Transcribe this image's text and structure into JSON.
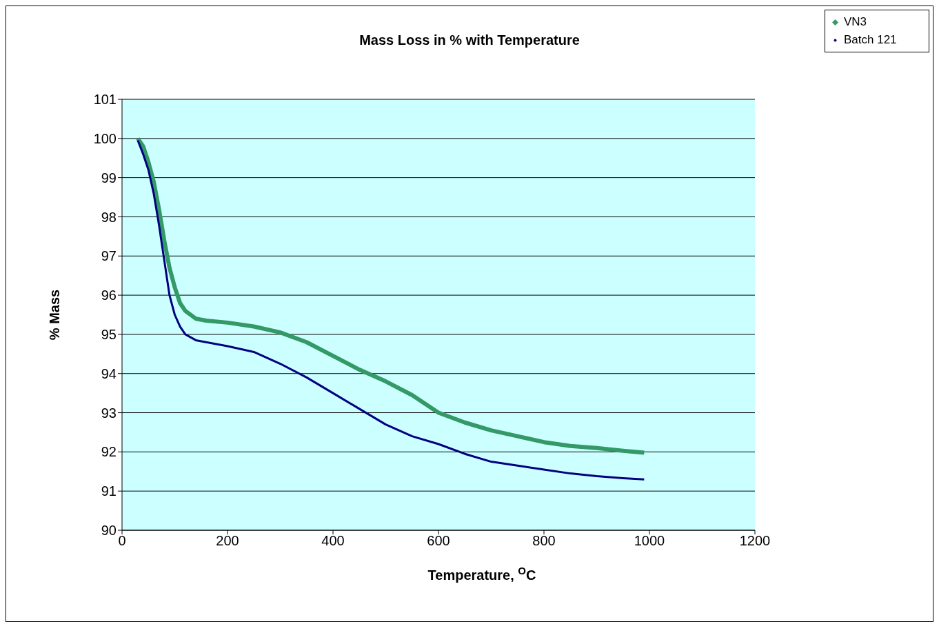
{
  "chart_data": {
    "type": "line",
    "title": "Mass Loss in % with Temperature",
    "xlabel": "Temperature, $^{O}$C",
    "ylabel": "% Mass",
    "xlim": [
      0,
      1200
    ],
    "xticks": [
      0,
      200,
      400,
      600,
      800,
      1000,
      1200
    ],
    "ylim": [
      90,
      101
    ],
    "yticks": [
      90,
      91,
      92,
      93,
      94,
      95,
      96,
      97,
      98,
      99,
      100,
      101
    ],
    "grid": "y",
    "legend": "top right",
    "series": [
      {
        "name": "VN3",
        "color": "#339966",
        "x": [
          30,
          40,
          50,
          60,
          70,
          80,
          90,
          100,
          110,
          120,
          140,
          160,
          200,
          250,
          300,
          350,
          400,
          450,
          500,
          550,
          600,
          650,
          700,
          750,
          800,
          850,
          900,
          950,
          990
        ],
        "values": [
          100,
          99.8,
          99.4,
          98.9,
          98.2,
          97.4,
          96.7,
          96.2,
          95.8,
          95.6,
          95.4,
          95.35,
          95.3,
          95.2,
          95.05,
          94.8,
          94.45,
          94.1,
          93.8,
          93.45,
          93.0,
          92.75,
          92.55,
          92.4,
          92.25,
          92.15,
          92.1,
          92.03,
          91.98
        ]
      },
      {
        "name": "Batch 121",
        "color": "#000080",
        "x": [
          30,
          40,
          50,
          60,
          70,
          80,
          90,
          100,
          110,
          120,
          140,
          200,
          250,
          300,
          350,
          400,
          450,
          500,
          550,
          600,
          650,
          700,
          750,
          800,
          850,
          900,
          950,
          990
        ],
        "values": [
          99.95,
          99.6,
          99.2,
          98.6,
          97.8,
          96.9,
          96.0,
          95.5,
          95.2,
          95.0,
          94.85,
          94.7,
          94.55,
          94.25,
          93.9,
          93.5,
          93.1,
          92.7,
          92.4,
          92.2,
          91.95,
          91.75,
          91.65,
          91.55,
          91.45,
          91.38,
          91.33,
          91.3
        ]
      }
    ]
  }
}
